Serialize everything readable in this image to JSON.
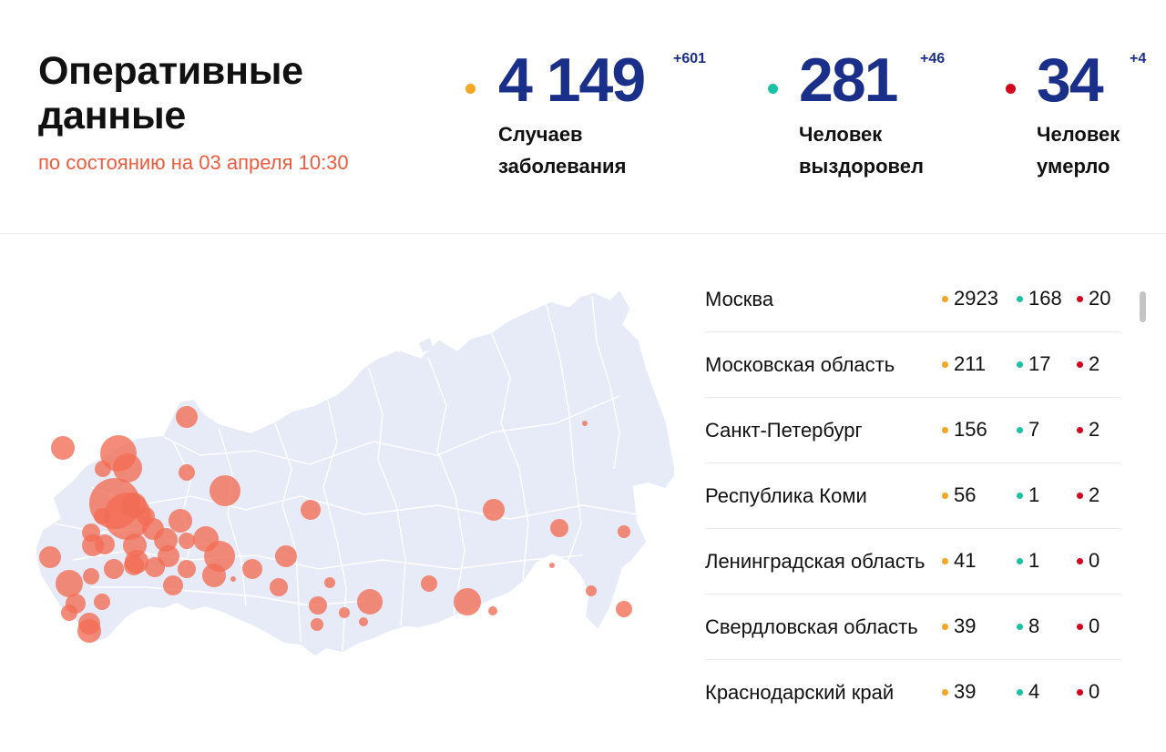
{
  "header": {
    "title_line1": "Оперативные",
    "title_line2": "данные",
    "subtitle": "по состоянию на 03 апреля 10:30"
  },
  "stats": [
    {
      "value": "4 149",
      "delta": "+601",
      "label_line1": "Случаев",
      "label_line2": "заболевания",
      "color": "#f5a623"
    },
    {
      "value": "281",
      "delta": "+46",
      "label_line1": "Человек",
      "label_line2": "выздоровел",
      "color": "#19c3a3"
    },
    {
      "value": "34",
      "delta": "+4",
      "label_line1": "Человек",
      "label_line2": "умерло",
      "color": "#d0021b"
    }
  ],
  "colors": {
    "cases": "#f5a623",
    "recovered": "#19c3a3",
    "deaths": "#d0021b",
    "accent": "#f05a3c",
    "number": "#1a2f8a",
    "map_land": "#e6ebf7",
    "marker": "#f26b55"
  },
  "regions": [
    {
      "name": "Москва",
      "cases": "2923",
      "recovered": "168",
      "deaths": "20"
    },
    {
      "name": "Московская область",
      "cases": "211",
      "recovered": "17",
      "deaths": "2"
    },
    {
      "name": "Санкт-Петербург",
      "cases": "156",
      "recovered": "7",
      "deaths": "2"
    },
    {
      "name": "Республика Коми",
      "cases": "56",
      "recovered": "1",
      "deaths": "2"
    },
    {
      "name": "Ленинградская область",
      "cases": "41",
      "recovered": "1",
      "deaths": "0"
    },
    {
      "name": "Свердловская область",
      "cases": "39",
      "recovered": "8",
      "deaths": "0"
    },
    {
      "name": "Краснодарский край",
      "cases": "39",
      "recovered": "4",
      "deaths": "0"
    }
  ]
}
